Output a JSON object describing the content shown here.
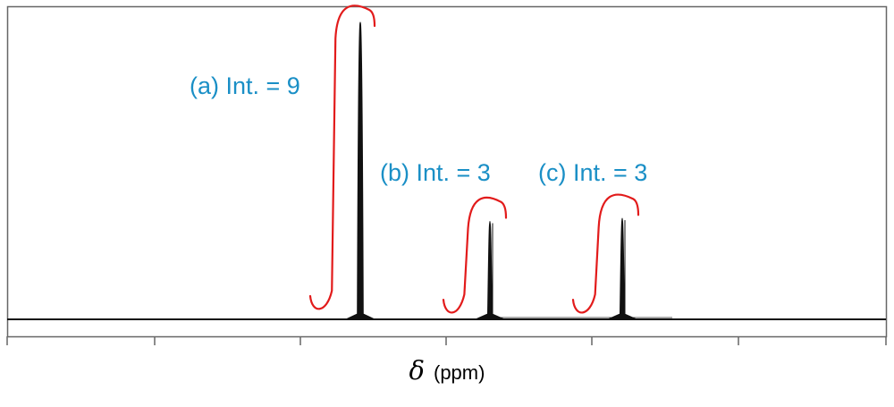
{
  "chart_data": {
    "type": "line",
    "xlabel_symbol": "δ",
    "xlabel_unit": "(ppm)",
    "tick_labels": [],
    "grid": false,
    "peaks": [
      {
        "label": "(a) Int. = 9",
        "integral": 9,
        "relative_height": 1.0
      },
      {
        "label": "(b) Int. = 3",
        "integral": 3,
        "relative_height": 0.33
      },
      {
        "label": "(c) Int. = 3",
        "integral": 3,
        "relative_height": 0.34
      }
    ]
  },
  "colors": {
    "spectrum": "#111111",
    "integral": "#e21b1b",
    "annotation": "#1a8fc6",
    "frame": "#666666"
  }
}
